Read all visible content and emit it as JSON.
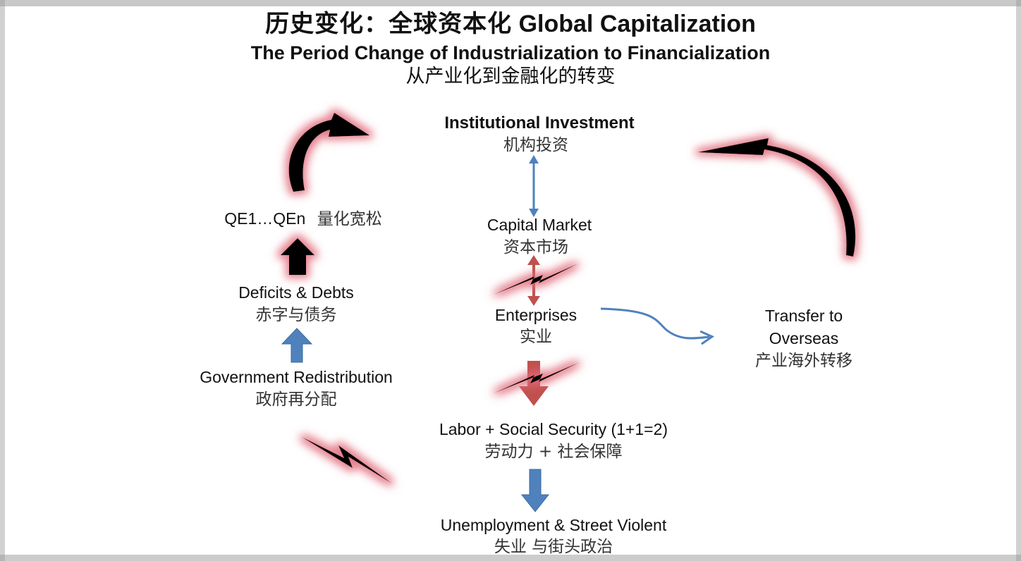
{
  "title": {
    "zh": "历史变化：全球资本化",
    "en": "Global Capitalization"
  },
  "subtitle": {
    "en": "The Period Change of Industrialization to Financialization",
    "zh": "从产业化到金融化的转变"
  },
  "nodes": {
    "institutional_investment": {
      "en": "Institutional Investment",
      "zh": "机构投资"
    },
    "capital_market": {
      "en": "Capital Market",
      "zh": "资本市场"
    },
    "enterprises": {
      "en": "Enterprises",
      "zh": "实业"
    },
    "labor_social_security": {
      "en": "Labor + Social Security  (1+1=2)",
      "zh": "劳动力 + 社会保障"
    },
    "unemployment": {
      "en": "Unemployment &  Street Violent",
      "zh": "失业 与街头政治"
    },
    "government_redistribution": {
      "en": "Government Redistribution",
      "zh": "政府再分配"
    },
    "deficits_debts": {
      "en": "Deficits & Debts",
      "zh": "赤字与债务"
    },
    "qe": {
      "en": "QE1…QEn",
      "zh": "量化宽松"
    },
    "transfer_overseas": {
      "en_line1": "Transfer to",
      "en_line2": "Overseas",
      "zh": "产业海外转移"
    }
  },
  "colors": {
    "blue_arrow": "#4f81bd",
    "red_arrow": "#c0504d",
    "black_arrow": "#000000",
    "glow": "#e06a7a"
  }
}
